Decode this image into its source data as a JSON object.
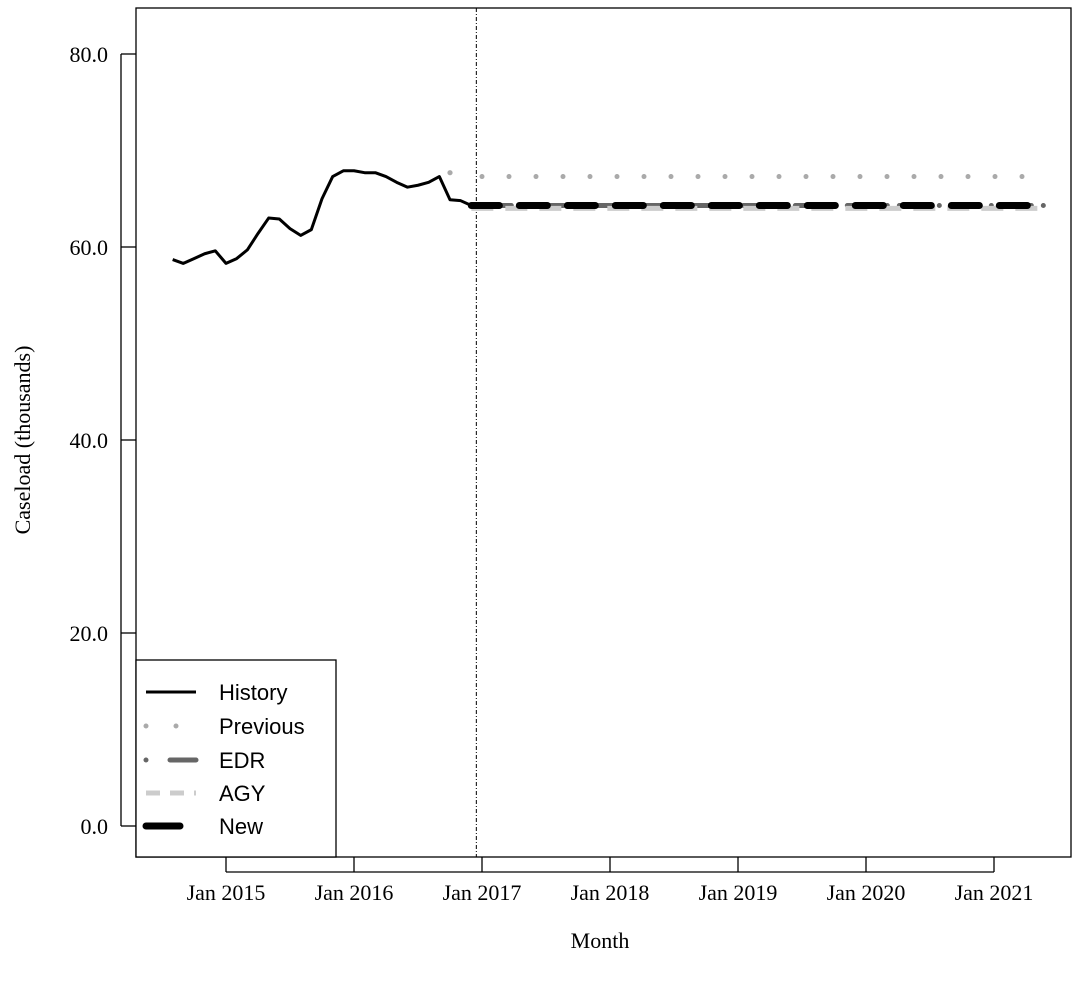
{
  "chart_data": {
    "type": "line",
    "xlabel": "Month",
    "ylabel": "Caseload (thousands)",
    "ylim": [
      0,
      80
    ],
    "yticks": [
      0,
      20,
      40,
      60,
      80
    ],
    "ytick_labels": [
      "0.0",
      "20.0",
      "40.0",
      "60.0",
      "80.0"
    ],
    "xticks": [
      "2015-01",
      "2016-01",
      "2017-01",
      "2018-01",
      "2019-01",
      "2020-01",
      "2021-01"
    ],
    "xtick_labels": [
      "Jan 2015",
      "Jan 2016",
      "Jan 2017",
      "Jan 2018",
      "Jan 2019",
      "Jan 2020",
      "Jan 2021"
    ],
    "vline": "2016-12",
    "grid": false,
    "legend_position": "bottom-left",
    "series": [
      {
        "name": "History",
        "color": "#000000",
        "style": "solid",
        "x": [
          "2014-08",
          "2014-09",
          "2014-10",
          "2014-11",
          "2014-12",
          "2015-01",
          "2015-02",
          "2015-03",
          "2015-04",
          "2015-05",
          "2015-06",
          "2015-07",
          "2015-08",
          "2015-09",
          "2015-10",
          "2015-11",
          "2015-12",
          "2016-01",
          "2016-02",
          "2016-03",
          "2016-04",
          "2016-05",
          "2016-06",
          "2016-07",
          "2016-08",
          "2016-09",
          "2016-10",
          "2016-11",
          "2016-12"
        ],
        "y": [
          58.7,
          58.3,
          58.8,
          59.3,
          59.6,
          58.3,
          58.8,
          59.7,
          61.4,
          63.0,
          62.9,
          61.9,
          61.2,
          61.8,
          65.0,
          67.3,
          67.9,
          67.9,
          67.7,
          67.7,
          67.3,
          66.7,
          66.2,
          66.4,
          66.7,
          67.3,
          64.9,
          64.8,
          64.3
        ]
      },
      {
        "name": "Previous",
        "color": "#aaaaaa",
        "style": "dotted",
        "x": [
          "2016-10",
          "2017-01",
          "2021-06"
        ],
        "y": [
          67.7,
          67.3,
          67.3
        ]
      },
      {
        "name": "EDR",
        "color": "#666666",
        "style": "dashdot",
        "x": [
          "2016-12",
          "2021-06"
        ],
        "y": [
          64.3,
          64.3
        ]
      },
      {
        "name": "AGY",
        "color": "#cccccc",
        "style": "dashed",
        "x": [
          "2016-12",
          "2021-06"
        ],
        "y": [
          64.0,
          64.0
        ]
      },
      {
        "name": "New",
        "color": "#000000",
        "style": "longdash",
        "x": [
          "2016-12",
          "2021-06"
        ],
        "y": [
          64.3,
          64.3
        ]
      }
    ]
  }
}
